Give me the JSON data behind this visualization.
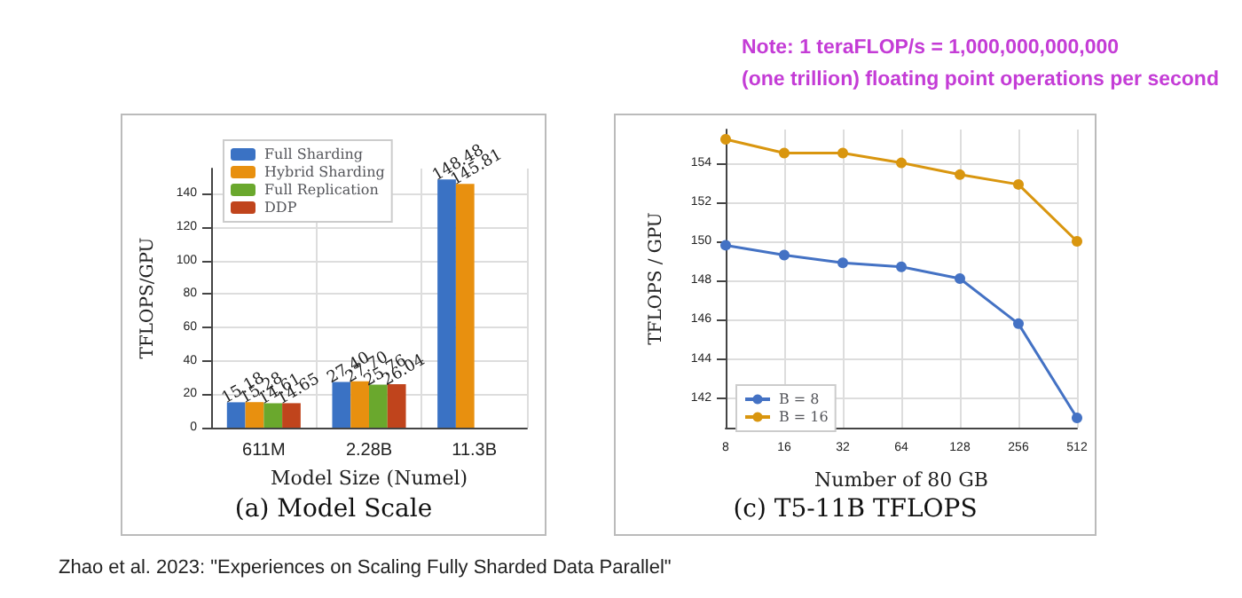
{
  "chart_data": [
    {
      "type": "bar",
      "title": "(a) Model Scale",
      "xlabel": "Model Size (Numel)",
      "ylabel": "TFLOPS/GPU",
      "categories": [
        "611M",
        "2.28B",
        "11.3B"
      ],
      "series": [
        {
          "name": "Full Sharding",
          "color": "#3a72c4",
          "values": [
            15.18,
            27.4,
            148.48
          ],
          "value_labels": [
            "15.18",
            "27.40",
            "148.48"
          ]
        },
        {
          "name": "Hybrid Sharding",
          "color": "#e8900f",
          "values": [
            15.28,
            27.7,
            145.81
          ],
          "value_labels": [
            "15.28",
            "27.70",
            "145.81"
          ]
        },
        {
          "name": "Full Replication",
          "color": "#6aa82d",
          "values": [
            14.61,
            25.76,
            null
          ],
          "value_labels": [
            "14.61",
            "25.76",
            null
          ]
        },
        {
          "name": "DDP",
          "color": "#c0441c",
          "values": [
            14.65,
            26.04,
            null
          ],
          "value_labels": [
            "14.65",
            "26.04",
            null
          ]
        }
      ],
      "ylim": [
        0,
        155
      ],
      "yticks": [
        0,
        20,
        40,
        60,
        80,
        100,
        120,
        140
      ],
      "grid": true,
      "legend": "top left",
      "annotations": [
        "Zhao et al. 2023: \"Experiences on Scaling Fully Sharded Data Parallel\""
      ]
    },
    {
      "type": "line",
      "title": "(c) T5-11B TFLOPS",
      "xlabel": "Number of 80 GB",
      "ylabel": "TFLOPS / GPU",
      "categories": [
        "8",
        "16",
        "32",
        "64",
        "128",
        "256",
        "512"
      ],
      "series": [
        {
          "name": "B = 8",
          "color": "#4472c4",
          "values": [
            149.8,
            149.3,
            148.9,
            148.7,
            148.1,
            145.8,
            141.0
          ]
        },
        {
          "name": "B = 16",
          "color": "#d9960f",
          "values": [
            155.2,
            154.5,
            154.5,
            154.0,
            153.4,
            152.9,
            150.0
          ]
        }
      ],
      "ylim": [
        140.5,
        155.7
      ],
      "yticks": [
        142,
        144,
        146,
        148,
        150,
        152,
        154
      ],
      "grid": true,
      "legend": "bottom left",
      "marker": "circle",
      "line_style": "solid",
      "annotations": [
        "Note: 1 teraFLOP/s = 1,000,000,000,000\n(one trillion) floating point operations per second"
      ]
    }
  ]
}
